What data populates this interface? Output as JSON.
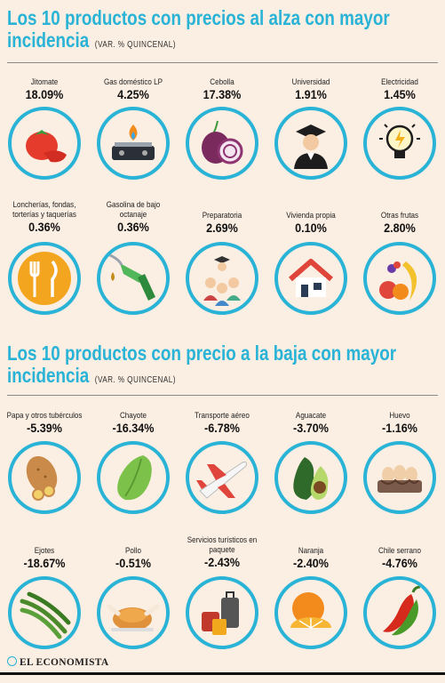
{
  "header_up": {
    "title_line1": "Los 10 productos con precios al alza con mayor",
    "title_line2": "incidencia",
    "note": "(VAR. % QUINCENAL)"
  },
  "header_down": {
    "title_line1": "Los 10 productos con precio a la baja con mayor",
    "title_line2": "incidencia",
    "note": "(VAR. % QUINCENAL)"
  },
  "footer": {
    "brand": "EL ECONOMISTA"
  },
  "colors": {
    "accent": "#29b3d6",
    "background": "#fbeee2"
  },
  "chart_data": [
    {
      "type": "table",
      "title": "Los 10 productos con precios al alza con mayor incidencia",
      "subtitle": "(VAR. % QUINCENAL)",
      "items": [
        {
          "name": "Jitomate",
          "value": "18.09%",
          "icon": "tomato-icon"
        },
        {
          "name": "Gas doméstico LP",
          "value": "4.25%",
          "icon": "gas-stove-icon"
        },
        {
          "name": "Cebolla",
          "value": "17.38%",
          "icon": "onion-icon"
        },
        {
          "name": "Universidad",
          "value": "1.91%",
          "icon": "graduate-icon"
        },
        {
          "name": "Electricidad",
          "value": "1.45%",
          "icon": "lightbulb-icon"
        },
        {
          "name": "Loncherías, fondas, torterías y taquerías",
          "value": "0.36%",
          "icon": "cutlery-icon"
        },
        {
          "name": "Gasolina de bajo octanaje",
          "value": "0.36%",
          "icon": "fuel-nozzle-icon"
        },
        {
          "name": "Preparatoria",
          "value": "2.69%",
          "icon": "students-icon"
        },
        {
          "name": "Vivienda propia",
          "value": "0.10%",
          "icon": "house-icon"
        },
        {
          "name": "Otras frutas",
          "value": "2.80%",
          "icon": "fruits-icon"
        }
      ]
    },
    {
      "type": "table",
      "title": "Los 10 productos con precio a la baja con mayor incidencia",
      "subtitle": "(VAR. % QUINCENAL)",
      "items": [
        {
          "name": "Papa y otros tubérculos",
          "value": "-5.39%",
          "icon": "potato-icon"
        },
        {
          "name": "Chayote",
          "value": "-16.34%",
          "icon": "chayote-icon"
        },
        {
          "name": "Transporte aéreo",
          "value": "-6.78%",
          "icon": "airplane-icon"
        },
        {
          "name": "Aguacate",
          "value": "-3.70%",
          "icon": "avocado-icon"
        },
        {
          "name": "Huevo",
          "value": "-1.16%",
          "icon": "eggs-icon"
        },
        {
          "name": "Ejotes",
          "value": "-18.67%",
          "icon": "green-beans-icon"
        },
        {
          "name": "Pollo",
          "value": "-0.51%",
          "icon": "roast-chicken-icon"
        },
        {
          "name": "Servicios turísticos en paquete",
          "value": "-2.43%",
          "icon": "luggage-icon"
        },
        {
          "name": "Naranja",
          "value": "-2.40%",
          "icon": "orange-icon"
        },
        {
          "name": "Chile serrano",
          "value": "-4.76%",
          "icon": "chili-icon"
        }
      ]
    }
  ]
}
